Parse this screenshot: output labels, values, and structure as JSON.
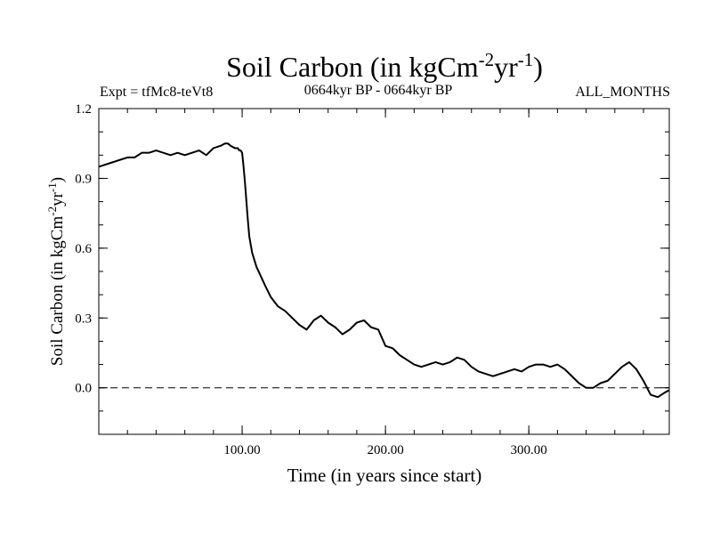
{
  "chart_data": {
    "type": "line",
    "title": {
      "main": "Soil Carbon (in kgCm",
      "sup1": "-2",
      "mid": "yr",
      "sup2": "-1",
      "end": ")"
    },
    "subtitle_left": "Expt = tfMc8-teVt8",
    "subtitle_center": "0664kyr BP - 0664kyr BP",
    "subtitle_right": "ALL_MONTHS",
    "xlabel": "Time (in years since start)",
    "ylabel": {
      "main": "Soil Carbon (in kgCm",
      "sup1": "-2",
      "mid": "yr",
      "sup2": "-1",
      "end": ")"
    },
    "xlim": [
      0,
      398
    ],
    "ylim": [
      -0.2,
      1.2
    ],
    "xticks": [
      100,
      200,
      300
    ],
    "xtick_labels": [
      "100.00",
      "200.00",
      "300.00"
    ],
    "xminor_step": 20,
    "yticks": [
      0.0,
      0.3,
      0.6,
      0.9,
      1.2
    ],
    "ytick_labels": [
      "0.0",
      "0.3",
      "0.6",
      "0.9",
      "1.2"
    ],
    "yminor_step": 0.1,
    "zero_line": true,
    "grid": false,
    "line_color": "#000000",
    "series": [
      {
        "x": [
          0,
          5,
          10,
          15,
          20,
          25,
          30,
          35,
          40,
          45,
          50,
          55,
          60,
          65,
          70,
          75,
          80,
          85,
          88,
          90,
          92,
          95,
          97,
          98,
          99,
          100,
          101,
          102,
          103,
          104,
          105,
          107,
          110,
          113,
          116,
          120,
          125,
          130,
          135,
          140,
          145,
          150,
          155,
          160,
          165,
          170,
          175,
          180,
          185,
          190,
          195,
          200,
          205,
          210,
          215,
          220,
          225,
          230,
          235,
          240,
          245,
          250,
          255,
          260,
          265,
          270,
          275,
          280,
          285,
          290,
          295,
          300,
          305,
          310,
          315,
          320,
          325,
          330,
          335,
          340,
          345,
          350,
          355,
          360,
          365,
          370,
          375,
          380,
          385,
          390,
          395,
          398
        ],
        "y": [
          0.95,
          0.96,
          0.97,
          0.98,
          0.99,
          0.99,
          1.01,
          1.01,
          1.02,
          1.01,
          1.0,
          1.01,
          1.0,
          1.01,
          1.02,
          1.0,
          1.03,
          1.04,
          1.05,
          1.05,
          1.04,
          1.03,
          1.03,
          1.02,
          1.02,
          1.01,
          0.95,
          0.88,
          0.8,
          0.72,
          0.65,
          0.58,
          0.52,
          0.48,
          0.44,
          0.39,
          0.35,
          0.33,
          0.3,
          0.27,
          0.25,
          0.29,
          0.31,
          0.28,
          0.26,
          0.23,
          0.25,
          0.28,
          0.29,
          0.26,
          0.25,
          0.18,
          0.17,
          0.14,
          0.12,
          0.1,
          0.09,
          0.1,
          0.11,
          0.1,
          0.11,
          0.13,
          0.12,
          0.09,
          0.07,
          0.06,
          0.05,
          0.06,
          0.07,
          0.08,
          0.07,
          0.09,
          0.1,
          0.1,
          0.09,
          0.1,
          0.08,
          0.05,
          0.02,
          0.0,
          0.0,
          0.02,
          0.03,
          0.06,
          0.09,
          0.11,
          0.08,
          0.03,
          -0.03,
          -0.04,
          -0.02,
          -0.01
        ]
      }
    ]
  }
}
